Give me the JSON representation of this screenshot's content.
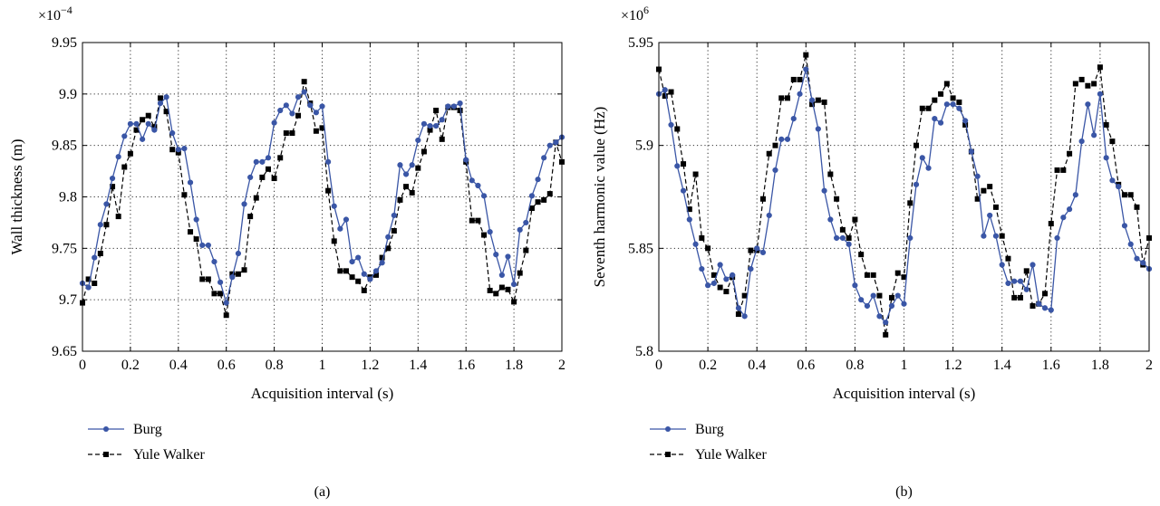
{
  "colors": {
    "burg": "#3a56a6",
    "yule": "#000000",
    "grid": "#333333",
    "axes": "#000000"
  },
  "chart_data": [
    {
      "panel": "(a)",
      "type": "line",
      "title": "",
      "xlabel": "Acquisition interval (s)",
      "ylabel": "Wall thickness (m)",
      "y_multiplier": "×10",
      "y_exponent": "−4",
      "xlim": [
        0,
        2
      ],
      "ylim": [
        9.65,
        9.95
      ],
      "xticks": [
        0,
        0.2,
        0.4,
        0.6,
        0.8,
        1,
        1.2,
        1.4,
        1.6,
        1.8,
        2
      ],
      "xtick_labels": [
        "0",
        "0.2",
        "0.4",
        "0.6",
        "0.8",
        "1",
        "1.2",
        "1.4",
        "1.6",
        "1.8",
        "2"
      ],
      "yticks": [
        9.65,
        9.7,
        9.75,
        9.8,
        9.85,
        9.9,
        9.95
      ],
      "ytick_labels": [
        "9.65",
        "9.7",
        "9.75",
        "9.8",
        "9.85",
        "9.9",
        "9.95"
      ],
      "grid": true,
      "legend_position": "below-left",
      "x": [
        0,
        0.025,
        0.05,
        0.075,
        0.1,
        0.125,
        0.15,
        0.175,
        0.2,
        0.225,
        0.25,
        0.275,
        0.3,
        0.325,
        0.35,
        0.375,
        0.4,
        0.425,
        0.45,
        0.475,
        0.5,
        0.525,
        0.55,
        0.575,
        0.6,
        0.625,
        0.65,
        0.675,
        0.7,
        0.725,
        0.75,
        0.775,
        0.8,
        0.825,
        0.85,
        0.875,
        0.9,
        0.925,
        0.95,
        0.975,
        1,
        1.025,
        1.05,
        1.075,
        1.1,
        1.125,
        1.15,
        1.175,
        1.2,
        1.225,
        1.25,
        1.275,
        1.3,
        1.325,
        1.35,
        1.375,
        1.4,
        1.425,
        1.45,
        1.475,
        1.5,
        1.525,
        1.55,
        1.575,
        1.6,
        1.625,
        1.65,
        1.675,
        1.7,
        1.725,
        1.75,
        1.775,
        1.8,
        1.825,
        1.85,
        1.875,
        1.9,
        1.925,
        1.95,
        1.975,
        2
      ],
      "series": [
        {
          "name": "Burg",
          "marker": "circle",
          "dash": "solid",
          "values": [
            9.716,
            9.712,
            9.741,
            9.773,
            9.793,
            9.818,
            9.839,
            9.859,
            9.871,
            9.871,
            9.856,
            9.871,
            9.865,
            9.891,
            9.897,
            9.862,
            9.846,
            9.847,
            9.814,
            9.778,
            9.753,
            9.753,
            9.737,
            9.717,
            9.697,
            9.722,
            9.745,
            9.793,
            9.819,
            9.834,
            9.834,
            9.838,
            9.872,
            9.884,
            9.889,
            9.881,
            9.897,
            9.902,
            9.889,
            9.882,
            9.888,
            9.834,
            9.791,
            9.769,
            9.778,
            9.737,
            9.741,
            9.725,
            9.72,
            9.728,
            9.736,
            9.761,
            9.782,
            9.831,
            9.822,
            9.831,
            9.855,
            9.871,
            9.869,
            9.869,
            9.875,
            9.888,
            9.888,
            9.891,
            9.836,
            9.816,
            9.811,
            9.801,
            9.766,
            9.744,
            9.724,
            9.742,
            9.715,
            9.768,
            9.775,
            9.801,
            9.817,
            9.838,
            9.85,
            9.853,
            9.858
          ]
        },
        {
          "name": "Yule Walker",
          "marker": "square",
          "dash": "dashed",
          "values": [
            9.697,
            9.72,
            9.716,
            9.745,
            9.773,
            9.81,
            9.781,
            9.829,
            9.842,
            9.865,
            9.875,
            9.879,
            9.868,
            9.896,
            9.883,
            9.846,
            9.843,
            9.802,
            9.766,
            9.759,
            9.72,
            9.72,
            9.706,
            9.706,
            9.685,
            9.725,
            9.725,
            9.729,
            9.781,
            9.799,
            9.819,
            9.827,
            9.818,
            9.838,
            9.862,
            9.862,
            9.879,
            9.912,
            9.891,
            9.864,
            9.867,
            9.806,
            9.757,
            9.728,
            9.728,
            9.722,
            9.718,
            9.709,
            9.722,
            9.724,
            9.741,
            9.75,
            9.767,
            9.797,
            9.81,
            9.804,
            9.828,
            9.844,
            9.865,
            9.884,
            9.856,
            9.887,
            9.887,
            9.884,
            9.834,
            9.777,
            9.777,
            9.763,
            9.709,
            9.706,
            9.712,
            9.71,
            9.698,
            9.726,
            9.748,
            9.789,
            9.795,
            9.797,
            9.803,
            9.853,
            9.834
          ]
        }
      ]
    },
    {
      "panel": "(b)",
      "type": "line",
      "title": "",
      "xlabel": "Acquisition interval (s)",
      "ylabel": "Seventh harmonic value (Hz)",
      "y_multiplier": "×10",
      "y_exponent": "6",
      "xlim": [
        0,
        2
      ],
      "ylim": [
        5.8,
        5.95
      ],
      "xticks": [
        0,
        0.2,
        0.4,
        0.6,
        0.8,
        1,
        1.2,
        1.4,
        1.6,
        1.8,
        2
      ],
      "xtick_labels": [
        "0",
        "0.2",
        "0.4",
        "0.6",
        "0.8",
        "1",
        "1.2",
        "1.4",
        "1.6",
        "1.8",
        "2"
      ],
      "yticks": [
        5.8,
        5.85,
        5.9,
        5.95
      ],
      "ytick_labels": [
        "5.8",
        "5.85",
        "5.9",
        "5.95"
      ],
      "grid": true,
      "legend_position": "below-left",
      "x": [
        0,
        0.025,
        0.05,
        0.075,
        0.1,
        0.125,
        0.15,
        0.175,
        0.2,
        0.225,
        0.25,
        0.275,
        0.3,
        0.325,
        0.35,
        0.375,
        0.4,
        0.425,
        0.45,
        0.475,
        0.5,
        0.525,
        0.55,
        0.575,
        0.6,
        0.625,
        0.65,
        0.675,
        0.7,
        0.725,
        0.75,
        0.775,
        0.8,
        0.825,
        0.85,
        0.875,
        0.9,
        0.925,
        0.95,
        0.975,
        1,
        1.025,
        1.05,
        1.075,
        1.1,
        1.125,
        1.15,
        1.175,
        1.2,
        1.225,
        1.25,
        1.275,
        1.3,
        1.325,
        1.35,
        1.375,
        1.4,
        1.425,
        1.45,
        1.475,
        1.5,
        1.525,
        1.55,
        1.575,
        1.6,
        1.625,
        1.65,
        1.675,
        1.7,
        1.725,
        1.75,
        1.775,
        1.8,
        1.825,
        1.85,
        1.875,
        1.9,
        1.925,
        1.95,
        1.975,
        2
      ],
      "series": [
        {
          "name": "Burg",
          "marker": "circle",
          "dash": "solid",
          "values": [
            5.925,
            5.927,
            5.91,
            5.89,
            5.878,
            5.864,
            5.852,
            5.84,
            5.832,
            5.833,
            5.842,
            5.835,
            5.837,
            5.821,
            5.817,
            5.84,
            5.85,
            5.848,
            5.866,
            5.888,
            5.903,
            5.903,
            5.913,
            5.925,
            5.937,
            5.922,
            5.908,
            5.878,
            5.864,
            5.855,
            5.855,
            5.852,
            5.832,
            5.825,
            5.822,
            5.827,
            5.817,
            5.814,
            5.822,
            5.827,
            5.823,
            5.855,
            5.881,
            5.894,
            5.889,
            5.913,
            5.911,
            5.92,
            5.92,
            5.918,
            5.912,
            5.897,
            5.885,
            5.856,
            5.866,
            5.856,
            5.842,
            5.833,
            5.834,
            5.834,
            5.83,
            5.842,
            5.823,
            5.821,
            5.82,
            5.855,
            5.865,
            5.869,
            5.876,
            5.902,
            5.92,
            5.905,
            5.925,
            5.894,
            5.883,
            5.88,
            5.861,
            5.852,
            5.845,
            5.843,
            5.84
          ]
        },
        {
          "name": "Yule Walker",
          "marker": "square",
          "dash": "dashed",
          "values": [
            5.937,
            5.924,
            5.926,
            5.908,
            5.891,
            5.869,
            5.886,
            5.855,
            5.85,
            5.837,
            5.831,
            5.829,
            5.836,
            5.818,
            5.827,
            5.849,
            5.849,
            5.874,
            5.896,
            5.9,
            5.923,
            5.923,
            5.932,
            5.932,
            5.944,
            5.92,
            5.922,
            5.921,
            5.886,
            5.874,
            5.859,
            5.855,
            5.864,
            5.847,
            5.837,
            5.837,
            5.827,
            5.808,
            5.826,
            5.838,
            5.836,
            5.872,
            5.9,
            5.918,
            5.918,
            5.922,
            5.925,
            5.93,
            5.923,
            5.921,
            5.91,
            5.897,
            5.874,
            5.878,
            5.88,
            5.87,
            5.856,
            5.845,
            5.826,
            5.826,
            5.839,
            5.822,
            5.823,
            5.828,
            5.862,
            5.888,
            5.888,
            5.896,
            5.93,
            5.932,
            5.929,
            5.93,
            5.938,
            5.91,
            5.902,
            5.881,
            5.876,
            5.876,
            5.87,
            5.842,
            5.855
          ]
        }
      ]
    }
  ]
}
